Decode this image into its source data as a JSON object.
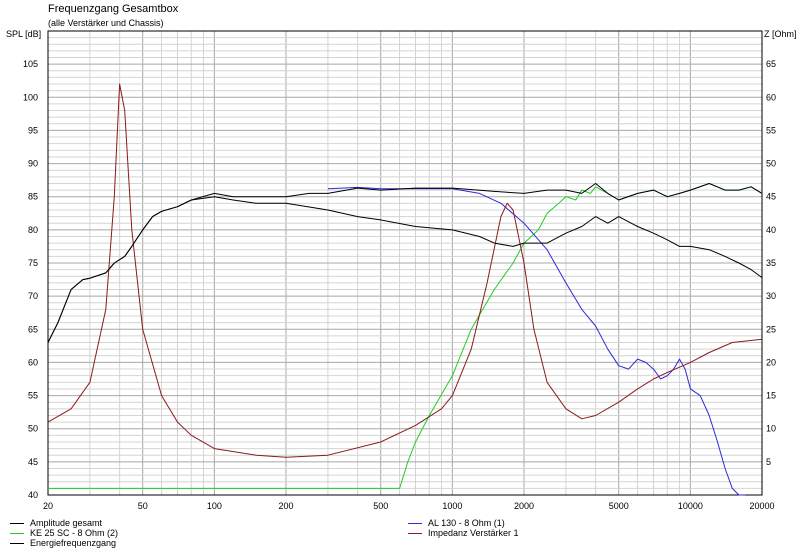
{
  "chart_data": {
    "type": "line",
    "title": "Frequenzgang Gesamtbox",
    "subtitle": "(alle Verstärker und Chassis)",
    "ylabel": "SPL [dB]",
    "y2label": "Z [Ohm]",
    "x_scale": "log",
    "xlim": [
      20,
      20000
    ],
    "ylim": [
      40,
      110
    ],
    "y2lim": [
      0,
      70
    ],
    "x_ticks": [
      20,
      50,
      100,
      200,
      500,
      1000,
      2000,
      5000,
      10000,
      20000
    ],
    "x_tick_labels": [
      "20",
      "50",
      "100",
      "200",
      "500",
      "1000",
      "2000",
      "5000",
      "10000",
      "20000"
    ],
    "y_ticks": [
      40,
      45,
      50,
      55,
      60,
      65,
      70,
      75,
      80,
      85,
      90,
      95,
      100,
      105
    ],
    "y2_ticks": [
      5,
      10,
      15,
      20,
      25,
      30,
      35,
      40,
      45,
      50,
      55,
      60,
      65
    ],
    "grid": true,
    "legend_position": "bottom",
    "series": [
      {
        "name": "Amplitude gesamt",
        "axis": "left",
        "color": "#000000",
        "x": [
          20,
          22,
          25,
          28,
          30,
          35,
          38,
          42,
          45,
          50,
          55,
          60,
          70,
          80,
          100,
          120,
          150,
          200,
          250,
          300,
          400,
          500,
          700,
          1000,
          1500,
          2000,
          2500,
          3000,
          3500,
          4000,
          4500,
          5000,
          6000,
          7000,
          8000,
          9000,
          10000,
          12000,
          14000,
          16000,
          18000,
          20000
        ],
        "y": [
          63,
          66,
          71,
          72.5,
          72.7,
          73.5,
          75,
          76,
          77.5,
          80,
          82,
          82.8,
          83.5,
          84.5,
          85.5,
          85,
          85,
          85,
          85.5,
          85.5,
          86.3,
          86,
          86.3,
          86.3,
          85.8,
          85.5,
          86,
          86,
          85.5,
          87,
          85.5,
          84.5,
          85.5,
          86,
          85,
          85.5,
          86,
          87,
          86,
          86,
          86.5,
          85.5
        ]
      },
      {
        "name": "AL 130 - 8 Ohm (1)",
        "axis": "left",
        "color": "#2b2bd8",
        "x": [
          300,
          400,
          500,
          700,
          1000,
          1300,
          1600,
          2000,
          2500,
          3000,
          3500,
          4000,
          4500,
          5000,
          5500,
          6000,
          6500,
          7000,
          7500,
          8000,
          8500,
          9000,
          9500,
          10000,
          11000,
          12000,
          13000,
          14000,
          15000,
          16000,
          17000
        ],
        "y": [
          86.2,
          86.4,
          86.2,
          86.2,
          86.2,
          85.5,
          84,
          81,
          77,
          72,
          68,
          65.5,
          62,
          59.5,
          59,
          60.5,
          60,
          59,
          57.5,
          58,
          59,
          60.5,
          59,
          56,
          55,
          52,
          48,
          44,
          41,
          40,
          40
        ]
      },
      {
        "name": "KE 25 SC - 8 Ohm    (2)",
        "axis": "left",
        "color": "#22cc22",
        "x": [
          20,
          100,
          300,
          500,
          600,
          650,
          700,
          800,
          1000,
          1200,
          1500,
          1800,
          2000,
          2300,
          2500,
          2800,
          3000,
          3300,
          3500,
          3800,
          4000,
          4500,
          5000,
          6000,
          7000,
          8000,
          9000,
          10000,
          12000,
          14000,
          16000,
          18000,
          20000
        ],
        "y": [
          41,
          41,
          41,
          41,
          41,
          45,
          48,
          52,
          58,
          65,
          71,
          75,
          78,
          80,
          82.5,
          84,
          85,
          84.5,
          86,
          85.5,
          86.5,
          85.5,
          84.5,
          85.5,
          86,
          85,
          85.5,
          86,
          87,
          86,
          86,
          86.5,
          85.5
        ]
      },
      {
        "name": "Energiefrequenzgang",
        "axis": "left",
        "color": "#000000",
        "x": [
          20,
          22,
          25,
          28,
          30,
          35,
          38,
          42,
          45,
          50,
          55,
          60,
          70,
          80,
          100,
          120,
          150,
          200,
          300,
          400,
          500,
          700,
          1000,
          1300,
          1500,
          1800,
          2000,
          2500,
          3000,
          3500,
          4000,
          4500,
          5000,
          6000,
          7000,
          8000,
          9000,
          10000,
          12000,
          14000,
          16000,
          18000,
          20000
        ],
        "y": [
          63,
          66,
          71,
          72.5,
          72.7,
          73.5,
          75,
          76,
          77.5,
          80,
          82,
          82.8,
          83.5,
          84.5,
          85,
          84.5,
          84,
          84,
          83,
          82,
          81.5,
          80.5,
          80,
          79,
          78,
          77.5,
          78,
          78,
          79.5,
          80.5,
          82,
          81,
          82,
          80.5,
          79.5,
          78.5,
          77.5,
          77.5,
          77,
          76,
          75,
          74,
          72.8
        ]
      },
      {
        "name": "Impedanz Verstärker 1",
        "axis": "right",
        "color": "#8b1a1a",
        "x": [
          20,
          25,
          30,
          35,
          38,
          40,
          42,
          45,
          50,
          60,
          70,
          80,
          100,
          150,
          200,
          300,
          500,
          700,
          900,
          1000,
          1200,
          1400,
          1600,
          1700,
          1800,
          2000,
          2200,
          2500,
          3000,
          3500,
          4000,
          5000,
          6000,
          7000,
          8000,
          10000,
          12000,
          15000,
          20000
        ],
        "y": [
          11,
          13,
          17,
          28,
          45,
          62,
          58,
          40,
          25,
          15,
          11,
          9,
          7,
          6,
          5.7,
          6,
          8,
          10.5,
          13,
          15,
          22,
          32,
          42,
          44,
          43,
          35,
          25,
          17,
          13,
          11.5,
          12,
          14,
          16,
          17.5,
          18.5,
          20,
          21.5,
          23,
          23.5
        ]
      }
    ]
  }
}
